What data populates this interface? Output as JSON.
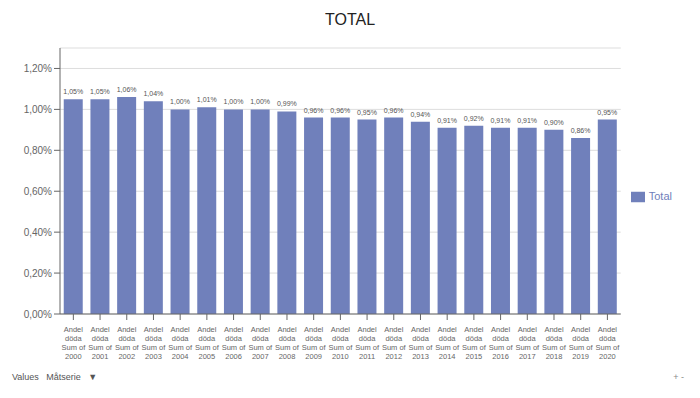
{
  "chart_data": {
    "type": "bar",
    "title": "TOTAL",
    "categories": [
      "Andel\ndöda\nSum of\n2000",
      "Andel\ndöda\nSum of\n2001",
      "Andel\ndöda\nSum of\n2002",
      "Andel\ndöda\nSum of\n2003",
      "Andel\ndöda\nSum of\n2004",
      "Andel\ndöda\nSum of\n2005",
      "Andel\ndöda\nSum of\n2006",
      "Andel\ndöda\nSum of\n2007",
      "Andel\ndöda\nSum of\n2008",
      "Andel\ndöda\nSum of\n2009",
      "Andel\ndöda\nSum of\n2010",
      "Andel\ndöda\nSum of\n2011",
      "Andel\ndöda\nSum of\n2012",
      "Andel\ndöda\nSum of\n2013",
      "Andel\ndöda\nSum of\n2014",
      "Andel\ndöda\nSum of\n2015",
      "Andel\ndöda\nSum of\n2016",
      "Andel\ndöda\nSum of\n2017",
      "Andel\ndöda\nSum of\n2018",
      "Andel\ndöda\nSum of\n2019",
      "Andel\ndöda\nSum of\n2020"
    ],
    "series": [
      {
        "name": "Total",
        "color": "#7080bb",
        "values": [
          0.0105,
          0.0105,
          0.0106,
          0.0104,
          0.01,
          0.0101,
          0.01,
          0.01,
          0.0099,
          0.0096,
          0.0096,
          0.0095,
          0.0096,
          0.0094,
          0.0091,
          0.0092,
          0.0091,
          0.0091,
          0.009,
          0.0086,
          0.0095
        ],
        "value_labels": [
          "1,05%",
          "1,05%",
          "1,06%",
          "1,04%",
          "1,00%",
          "1,01%",
          "1,00%",
          "1,00%",
          "0,99%",
          "0,96%",
          "0,96%",
          "0,95%",
          "0,96%",
          "0,94%",
          "0,91%",
          "0,92%",
          "0,91%",
          "0,91%",
          "0,90%",
          "0,86%",
          "0,95%"
        ]
      }
    ],
    "ylim": [
      0,
      0.013
    ],
    "yticks": [
      {
        "value": 0.0,
        "label": "0,00%"
      },
      {
        "value": 0.002,
        "label": "0,20%"
      },
      {
        "value": 0.004,
        "label": "0,40%"
      },
      {
        "value": 0.006,
        "label": "0,60%"
      },
      {
        "value": 0.008,
        "label": "0,80%"
      },
      {
        "value": 0.01,
        "label": "1,00%"
      },
      {
        "value": 0.012,
        "label": "1,20%"
      }
    ],
    "grid": true,
    "legend": "right",
    "data_labels": true,
    "annotations": [
      "Values   Måtserie   ▼",
      "+ -"
    ]
  }
}
